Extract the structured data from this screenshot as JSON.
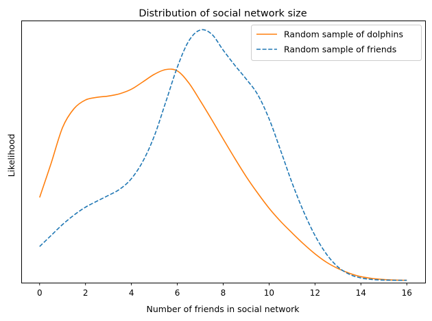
{
  "chart_data": {
    "type": "line",
    "title": "Distribution of social network size",
    "xlabel": "Number of friends in social network",
    "ylabel": "Likelihood",
    "xlim": [
      -0.8,
      16.8
    ],
    "ylim": [
      0,
      1.0
    ],
    "x_ticks": [
      0,
      2,
      4,
      6,
      8,
      10,
      12,
      14,
      16
    ],
    "x_tick_labels": [
      "0",
      "2",
      "4",
      "6",
      "8",
      "10",
      "12",
      "14",
      "16"
    ],
    "y_ticks_shown": false,
    "grid": false,
    "legend_position": "top-right",
    "series": [
      {
        "name": "Random sample of dolphins",
        "color": "#ff7f0e",
        "line_style": "solid",
        "x": [
          0,
          0.5,
          1,
          1.5,
          2,
          2.5,
          3,
          3.5,
          4,
          4.5,
          5,
          5.5,
          6,
          6.5,
          7,
          7.5,
          8,
          8.5,
          9,
          9.5,
          10,
          10.5,
          11,
          11.5,
          12,
          12.5,
          13,
          13.5,
          14,
          14.5,
          15,
          15.5,
          16
        ],
        "values": [
          0.325,
          0.455,
          0.592,
          0.664,
          0.697,
          0.707,
          0.712,
          0.721,
          0.738,
          0.766,
          0.795,
          0.813,
          0.808,
          0.762,
          0.694,
          0.622,
          0.548,
          0.475,
          0.405,
          0.342,
          0.284,
          0.234,
          0.19,
          0.148,
          0.11,
          0.078,
          0.054,
          0.036,
          0.023,
          0.016,
          0.012,
          0.01,
          0.009
        ]
      },
      {
        "name": "Random sample of friends",
        "color": "#1f77b4",
        "line_style": "dashed",
        "x": [
          0,
          0.5,
          1,
          1.5,
          2,
          2.5,
          3,
          3.5,
          4,
          4.5,
          5,
          5.5,
          6,
          6.5,
          7,
          7.5,
          8,
          8.5,
          9,
          9.5,
          10,
          10.5,
          11,
          11.5,
          12,
          12.5,
          13,
          13.5,
          14,
          14.5,
          15,
          15.5,
          16
        ],
        "values": [
          0.138,
          0.18,
          0.222,
          0.258,
          0.288,
          0.311,
          0.333,
          0.357,
          0.397,
          0.463,
          0.56,
          0.69,
          0.822,
          0.922,
          0.964,
          0.948,
          0.887,
          0.83,
          0.777,
          0.718,
          0.625,
          0.505,
          0.381,
          0.272,
          0.18,
          0.109,
          0.06,
          0.032,
          0.018,
          0.012,
          0.01,
          0.009,
          0.009
        ]
      }
    ]
  }
}
